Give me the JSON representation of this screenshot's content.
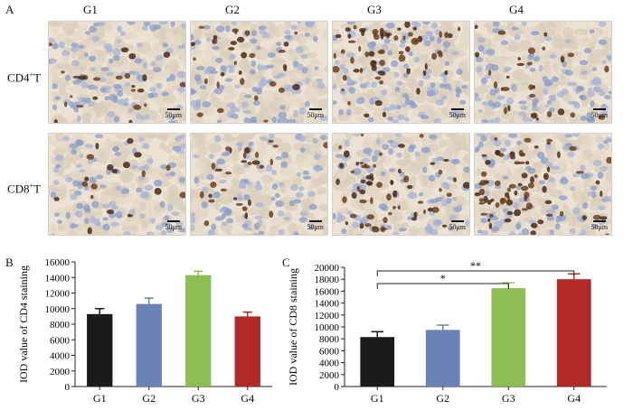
{
  "panel_labels": [
    "A",
    "B",
    "C"
  ],
  "columns": [
    "G1",
    "G2",
    "G3",
    "G4"
  ],
  "rows": [
    {
      "main": "CD4",
      "sup": "+",
      "tail": "T"
    },
    {
      "main": "CD8",
      "sup": "+",
      "tail": "T"
    }
  ],
  "scale_label": "50μm",
  "chart_data": [
    {
      "type": "bar",
      "categories": [
        "G1",
        "G2",
        "G3",
        "G4"
      ],
      "values": [
        9300,
        10600,
        14300,
        9000
      ],
      "errors": [
        700,
        750,
        500,
        550
      ],
      "colors": [
        "#1b1b1b",
        "#6a82b4",
        "#8dbe55",
        "#b02a27"
      ],
      "ylabel": "IOD value of CD4 staining",
      "ylim": [
        0,
        16000
      ],
      "yticks": [
        0,
        2000,
        4000,
        6000,
        8000,
        10000,
        12000,
        14000,
        16000
      ],
      "significance": []
    },
    {
      "type": "bar",
      "categories": [
        "G1",
        "G2",
        "G3",
        "G4"
      ],
      "values": [
        8300,
        9500,
        16500,
        18000
      ],
      "errors": [
        900,
        800,
        900,
        900
      ],
      "colors": [
        "#1b1b1b",
        "#6a82b4",
        "#8dbe55",
        "#b02a27"
      ],
      "ylabel": "IOD value of CD8 staining",
      "ylim": [
        0,
        20000
      ],
      "yticks": [
        0,
        2000,
        4000,
        6000,
        8000,
        10000,
        12000,
        14000,
        16000,
        18000,
        20000
      ],
      "significance": [
        {
          "from": 0,
          "to": 2,
          "label": "*"
        },
        {
          "from": 0,
          "to": 3,
          "label": "**"
        }
      ]
    }
  ]
}
